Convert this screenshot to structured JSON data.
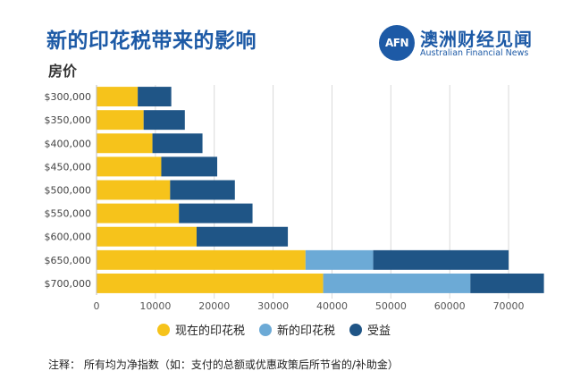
{
  "title": "新的印花税带来的影响",
  "subtitle": "房价",
  "logo": {
    "mark": "AFN",
    "name_cn": "澳洲财经见闻",
    "name_en": "Australian Financial News"
  },
  "colors": {
    "title": "#1d5aa6",
    "current_duty": "#f6c31b",
    "new_duty": "#6caad6",
    "benefit": "#1f5586",
    "grid": "#d9d9d9"
  },
  "note": "注释：  所有均为净指数（如：支付的总额或优惠政策后所节省的/补助金）",
  "chart_data": {
    "type": "bar",
    "orientation": "horizontal",
    "stacked": true,
    "title": "新的印花税带来的影响",
    "ylabel": "房价",
    "xlabel": "",
    "xlim": [
      0,
      75000
    ],
    "xticks": [
      0,
      10000,
      20000,
      30000,
      40000,
      50000,
      60000,
      70000
    ],
    "grid": true,
    "legend_position": "bottom",
    "categories": [
      "$300,000",
      "$350,000",
      "$400,000",
      "$450,000",
      "$500,000",
      "$550,000",
      "$600,000",
      "$650,000",
      "$700,000"
    ],
    "series": [
      {
        "name": "现在的印花税",
        "color": "#f6c31b",
        "values": [
          7000,
          8000,
          9500,
          11000,
          12500,
          14000,
          17000,
          35500,
          38500
        ]
      },
      {
        "name": "新的印花税",
        "color": "#6caad6",
        "values": [
          0,
          0,
          0,
          0,
          0,
          0,
          0,
          11500,
          25000
        ]
      },
      {
        "name": "受益",
        "color": "#1f5586",
        "values": [
          5700,
          7000,
          8500,
          9500,
          11000,
          12500,
          15500,
          23000,
          12500
        ]
      }
    ]
  }
}
